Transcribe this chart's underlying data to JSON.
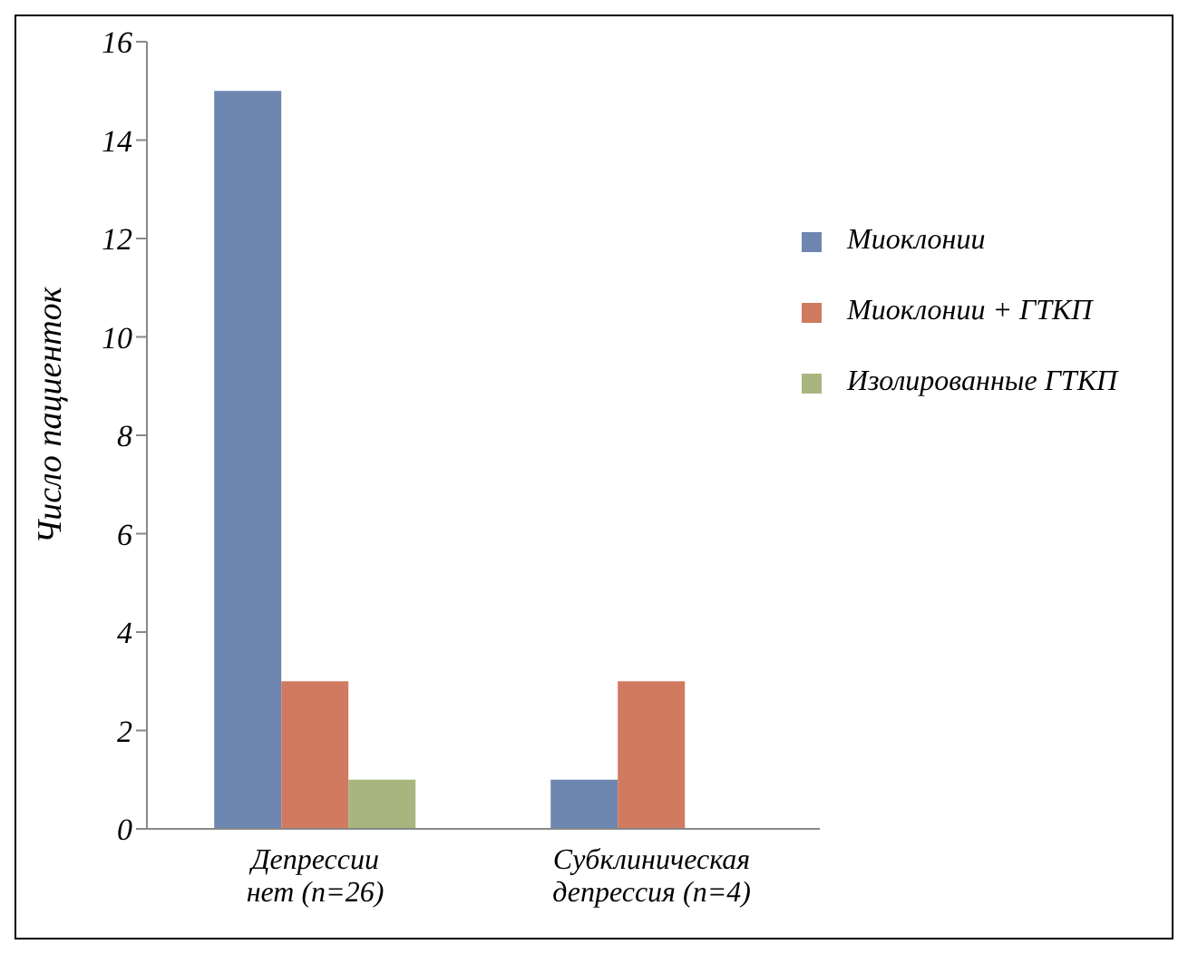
{
  "chart_data": {
    "type": "bar",
    "ylabel": "Число пациенток",
    "categories": [
      "Депрессии\nнет (n=26)",
      "Субклиническая\nдепрессия (n=4)"
    ],
    "series": [
      {
        "name": "Миоклонии",
        "color": "#6d87b0",
        "values": [
          15,
          1
        ]
      },
      {
        "name": "Миоклонии + ГТКП",
        "color": "#d07a5f",
        "values": [
          3,
          3
        ]
      },
      {
        "name": "Изолированные ГТКП",
        "color": "#a9b57f",
        "values": [
          1,
          0
        ]
      }
    ],
    "ylim": [
      0,
      16
    ],
    "yticks": [
      0,
      2,
      4,
      6,
      8,
      10,
      12,
      14,
      16
    ],
    "grid": false,
    "legend": "top right"
  }
}
